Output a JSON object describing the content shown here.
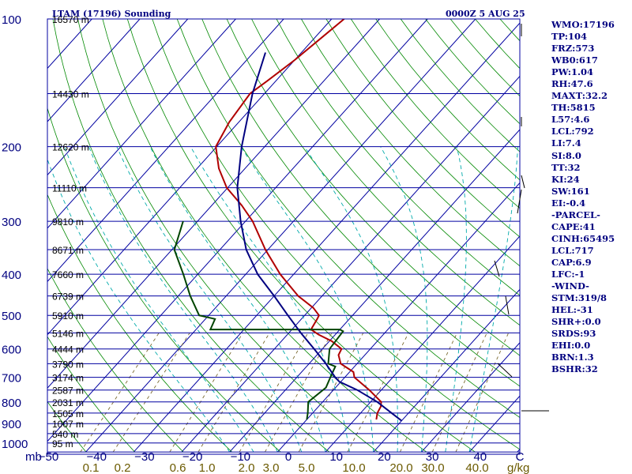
{
  "chart_data": {
    "type": "skew-t log-p sounding",
    "title": "LTAM (17196) Sounding",
    "valid_time": "0000Z  5 AUG 25",
    "pressure_axis": {
      "unit": "mb",
      "ticks": [
        100,
        200,
        300,
        400,
        500,
        600,
        700,
        800,
        900,
        1000
      ],
      "range": [
        1050,
        100
      ],
      "scale": "log"
    },
    "temperature_axis": {
      "unit": "C",
      "ticks": [
        -50,
        -40,
        -30,
        -20,
        -10,
        0,
        10,
        20,
        30,
        40
      ],
      "range": [
        -50,
        50
      ]
    },
    "mixing_ratio_axis": {
      "unit": "g/kg",
      "ticks": [
        "0.1",
        "0.2",
        "0.6",
        "1.0",
        "2.0",
        "3.0",
        "5.0",
        "10.0",
        "20.0",
        "30.0",
        "40.0"
      ]
    },
    "height_levels": [
      {
        "p": 100,
        "label": "16570 m"
      },
      {
        "p": 150,
        "label": "14430 m"
      },
      {
        "p": 200,
        "label": "12620 m"
      },
      {
        "p": 250,
        "label": "11110 m"
      },
      {
        "p": 300,
        "label": "9810 m"
      },
      {
        "p": 350,
        "label": "8671 m"
      },
      {
        "p": 400,
        "label": "7660 m"
      },
      {
        "p": 450,
        "label": "6739 m"
      },
      {
        "p": 500,
        "label": "5910 m"
      },
      {
        "p": 550,
        "label": "5146 m"
      },
      {
        "p": 600,
        "label": "4444 m"
      },
      {
        "p": 650,
        "label": "3790 m"
      },
      {
        "p": 700,
        "label": "3174 m"
      },
      {
        "p": 750,
        "label": "2587 m"
      },
      {
        "p": 800,
        "label": "2031 m"
      },
      {
        "p": 850,
        "label": "1505 m"
      },
      {
        "p": 900,
        "label": "1007 m"
      },
      {
        "p": 950,
        "label": "540 m"
      },
      {
        "p": 1000,
        "label": "95 m"
      }
    ],
    "series": [
      {
        "name": "Temperature",
        "color": "#b00000",
        "points": [
          [
            100,
            -67.4
          ],
          [
            110,
            -68.5
          ],
          [
            125,
            -70
          ],
          [
            140,
            -71.8
          ],
          [
            150,
            -73
          ],
          [
            175,
            -72
          ],
          [
            200,
            -70.2
          ],
          [
            225,
            -65.5
          ],
          [
            250,
            -60.2
          ],
          [
            275,
            -53.8
          ],
          [
            300,
            -48.5
          ],
          [
            350,
            -40.5
          ],
          [
            400,
            -32.8
          ],
          [
            450,
            -25
          ],
          [
            480,
            -19.6
          ],
          [
            500,
            -17
          ],
          [
            510,
            -16.7
          ],
          [
            540,
            -16
          ],
          [
            555,
            -13.5
          ],
          [
            575,
            -9.5
          ],
          [
            600,
            -6
          ],
          [
            620,
            -5.5
          ],
          [
            650,
            -3.4
          ],
          [
            680,
            0.8
          ],
          [
            700,
            2
          ],
          [
            750,
            7.5
          ],
          [
            800,
            12.2
          ],
          [
            820,
            13
          ],
          [
            850,
            13.5
          ],
          [
            880,
            14.5
          ]
        ]
      },
      {
        "name": "Dewpoint",
        "color": "#004400",
        "points": [
          [
            300,
            -63
          ],
          [
            350,
            -59.5
          ],
          [
            400,
            -53
          ],
          [
            450,
            -47.5
          ],
          [
            500,
            -42
          ],
          [
            510,
            -38
          ],
          [
            540,
            -37
          ],
          [
            540,
            -10
          ],
          [
            545,
            -9
          ],
          [
            600,
            -8.5
          ],
          [
            650,
            -6
          ],
          [
            660,
            -4
          ],
          [
            700,
            -3
          ],
          [
            740,
            -2
          ],
          [
            800,
            -3
          ],
          [
            850,
            -1
          ],
          [
            880,
            0
          ]
        ]
      },
      {
        "name": "Parcel",
        "color": "#000080",
        "points": [
          [
            120,
            -77.5
          ],
          [
            150,
            -72.5
          ],
          [
            200,
            -64.8
          ],
          [
            250,
            -58
          ],
          [
            300,
            -51
          ],
          [
            350,
            -44.5
          ],
          [
            400,
            -37.5
          ],
          [
            450,
            -30
          ],
          [
            500,
            -23.5
          ],
          [
            550,
            -17.5
          ],
          [
            600,
            -11.7
          ],
          [
            650,
            -6.5
          ],
          [
            700,
            -2
          ],
          [
            717,
            -0.3
          ],
          [
            750,
            5
          ],
          [
            800,
            11.4
          ],
          [
            850,
            16.5
          ],
          [
            885,
            19.9
          ]
        ]
      }
    ],
    "indices": [
      "WMO:17196",
      "TP:104",
      "FRZ:573",
      "WB0:617",
      "PW:1.04",
      "RH:47.6",
      "MAXT:32.2",
      "TH:5815",
      "L57:4.6",
      "LCL:792",
      "LI:7.4",
      "SI:8.0",
      "TT:32",
      "KI:24",
      "SW:161",
      "EI:-0.4",
      "-PARCEL-",
      "CAPE:41",
      "CINH:65495",
      "LCL:717",
      "CAP:6.9",
      "LFC:-1",
      "-WIND-",
      "STM:319/8",
      "HEL:-31",
      "SHR+:0.0",
      "SRDS:93",
      "EHI:0.0",
      "BRN:1.3",
      "BSHR:32"
    ],
    "colors": {
      "isobar": "#0000a0",
      "isotherm": "#0000a0",
      "dry_adiabat": "#008800",
      "moist_adiabat": "#00aaaa",
      "mixing_ratio": "#7a6a30"
    }
  }
}
